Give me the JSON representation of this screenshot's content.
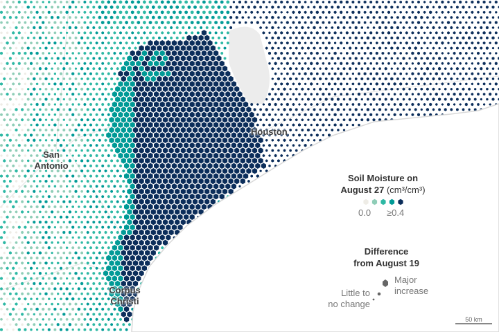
{
  "map": {
    "cities": [
      "Houston",
      "San Antonio",
      "Corpus Christi"
    ],
    "colors": [
      "#eeece6",
      "#8fcdb7",
      "#2db8a4",
      "#009a96",
      "#0b2d5a"
    ]
  },
  "legend": {
    "moisture_title": "Soil Moisture on",
    "moisture_title2": "August 27",
    "moisture_unit": "(cm³/cm³)",
    "min_label": "0.0",
    "max_label": "≥0.4",
    "difference_title": "Difference",
    "difference_title2": "from August 19",
    "little_label_1": "Little to",
    "little_label_2": "no change",
    "major_label_1": "Major",
    "major_label_2": "increase",
    "difference_color": "#666666"
  },
  "scale_bar": {
    "label": "50 km"
  }
}
